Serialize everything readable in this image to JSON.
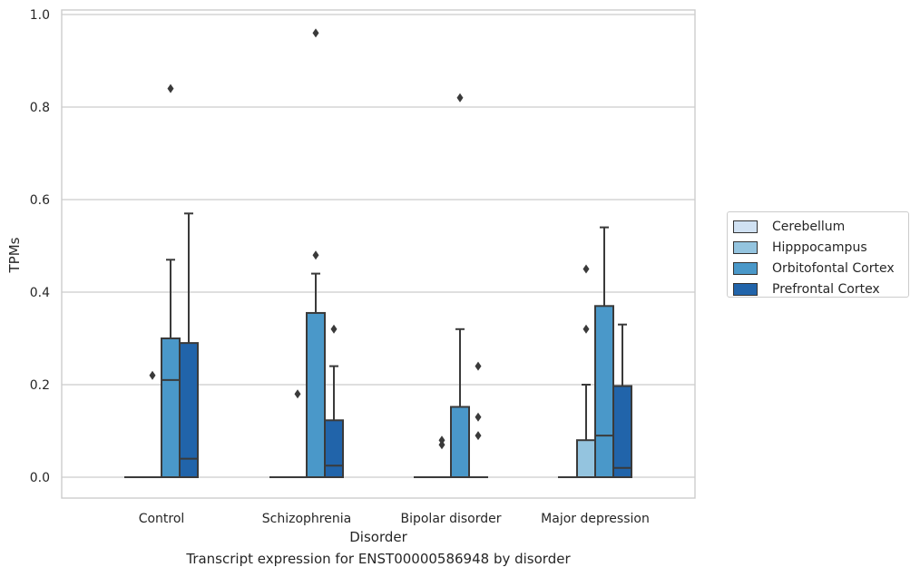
{
  "caption": "Transcript expression for ENST00000586948 by disorder",
  "chart_data": {
    "type": "boxplot",
    "xlabel": "Disorder",
    "ylabel": "TPMs",
    "ylim": [
      -0.045,
      1.01
    ],
    "yticks": [
      0.0,
      0.2,
      0.4,
      0.6,
      0.8,
      1.0
    ],
    "ytick_labels": [
      "0.0",
      "0.2",
      "0.4",
      "0.6",
      "0.8",
      "1.0"
    ],
    "grid": true,
    "legend_placement": "right",
    "categories": [
      "Control",
      "Schizophrenia",
      "Bipolar disorder",
      "Major depression"
    ],
    "series": [
      {
        "name": "Cerebellum",
        "color": "#d0e1f2",
        "boxes": [
          {
            "q1": 0,
            "median": 0,
            "q3": 0,
            "whislo": 0,
            "whishi": 0,
            "fliers": []
          },
          {
            "q1": 0,
            "median": 0,
            "q3": 0,
            "whislo": 0,
            "whishi": 0,
            "fliers": []
          },
          {
            "q1": 0,
            "median": 0,
            "q3": 0,
            "whislo": 0,
            "whishi": 0,
            "fliers": []
          },
          {
            "q1": 0,
            "median": 0,
            "q3": 0,
            "whislo": 0,
            "whishi": 0,
            "fliers": []
          }
        ]
      },
      {
        "name": "Hipppocampus",
        "color": "#94c4df",
        "boxes": [
          {
            "q1": 0,
            "median": 0,
            "q3": 0,
            "whislo": 0,
            "whishi": 0,
            "fliers": [
              0.22
            ]
          },
          {
            "q1": 0,
            "median": 0,
            "q3": 0,
            "whislo": 0,
            "whishi": 0,
            "fliers": [
              0.18
            ]
          },
          {
            "q1": 0,
            "median": 0,
            "q3": 0,
            "whislo": 0,
            "whishi": 0,
            "fliers": [
              0.07,
              0.08
            ]
          },
          {
            "q1": 0,
            "median": 0,
            "q3": 0.08,
            "whislo": 0,
            "whishi": 0.2,
            "fliers": [
              0.32,
              0.45
            ]
          }
        ]
      },
      {
        "name": "Orbitofontal Cortex",
        "color": "#4a98c9",
        "boxes": [
          {
            "q1": 0,
            "median": 0.21,
            "q3": 0.3,
            "whislo": 0,
            "whishi": 0.47,
            "fliers": [
              0.84
            ]
          },
          {
            "q1": 0,
            "median": 0,
            "q3": 0.355,
            "whislo": 0,
            "whishi": 0.44,
            "fliers": [
              0.48,
              0.96
            ]
          },
          {
            "q1": 0,
            "median": 0,
            "q3": 0.152,
            "whislo": 0,
            "whishi": 0.32,
            "fliers": [
              0.82
            ]
          },
          {
            "q1": 0,
            "median": 0.09,
            "q3": 0.37,
            "whislo": 0,
            "whishi": 0.54,
            "fliers": []
          }
        ]
      },
      {
        "name": "Prefrontal Cortex",
        "color": "#2164aa",
        "boxes": [
          {
            "q1": 0,
            "median": 0.04,
            "q3": 0.29,
            "whislo": 0,
            "whishi": 0.57,
            "fliers": []
          },
          {
            "q1": 0,
            "median": 0.025,
            "q3": 0.123,
            "whislo": 0,
            "whishi": 0.24,
            "fliers": [
              0.32
            ]
          },
          {
            "q1": 0,
            "median": 0,
            "q3": 0,
            "whislo": 0,
            "whishi": 0,
            "fliers": [
              0.09,
              0.13,
              0.24
            ]
          },
          {
            "q1": 0,
            "median": 0.02,
            "q3": 0.197,
            "whislo": 0,
            "whishi": 0.33,
            "fliers": []
          }
        ]
      }
    ]
  }
}
